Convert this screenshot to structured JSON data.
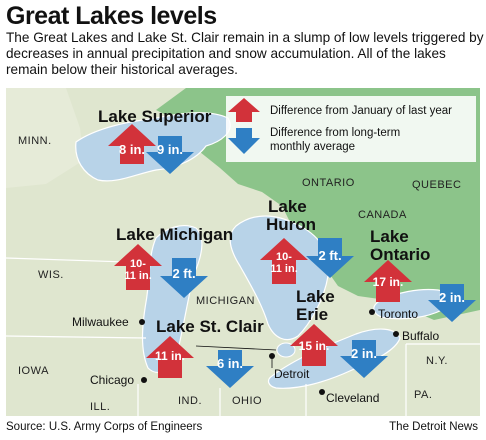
{
  "title": "Great Lakes levels",
  "subtitle": "The Great Lakes and Lake St. Clair remain in a slump of low levels triggered by decreases in annual precipitation and snow accumulation. All of the lakes remain below their historical averages.",
  "legend": {
    "red_label": "Difference from January of last year",
    "blue_label_1": "Difference from long-term",
    "blue_label_2": "monthly average"
  },
  "lakes": {
    "superior": {
      "name": "Lake Superior",
      "jan_diff": "8 in.",
      "avg_diff": "9 in."
    },
    "michigan": {
      "name": "Lake Michigan",
      "jan_diff_1": "10-",
      "jan_diff_2": "11 in.",
      "avg_diff": "2 ft."
    },
    "huron": {
      "name_1": "Lake",
      "name_2": "Huron",
      "jan_diff_1": "10-",
      "jan_diff_2": "11 in.",
      "avg_diff": "2 ft."
    },
    "ontario": {
      "name_1": "Lake",
      "name_2": "Ontario",
      "jan_diff": "17 in.",
      "avg_diff": "2 in."
    },
    "erie": {
      "name_1": "Lake",
      "name_2": "Erie",
      "jan_diff": "15 in.",
      "avg_diff": "2 in."
    },
    "stclair": {
      "name": "Lake St. Clair",
      "jan_diff": "11 in.",
      "avg_diff": "6 in."
    }
  },
  "regions": {
    "minn": "MINN.",
    "ontario": "ONTARIO",
    "quebec": "QUEBEC",
    "canada": "CANADA",
    "wis": "WIS.",
    "michigan": "MICHIGAN",
    "iowa": "IOWA",
    "ill": "ILL.",
    "ind": "IND.",
    "ohio": "OHIO",
    "ny": "N.Y.",
    "pa": "PA."
  },
  "cities": {
    "milwaukee": "Milwaukee",
    "chicago": "Chicago",
    "detroit": "Detroit",
    "toronto": "Toronto",
    "buffalo": "Buffalo",
    "cleveland": "Cleveland"
  },
  "source": "Source: U.S. Army Corps of Engineers",
  "credit": "The Detroit News",
  "colors": {
    "lake": "#b8d3e8",
    "land_us": "#dfe6cf",
    "land_canada": "#8cc48a",
    "arrow_red": "#d2323a",
    "arrow_blue": "#2f7fc4",
    "border": "#ffffff"
  }
}
